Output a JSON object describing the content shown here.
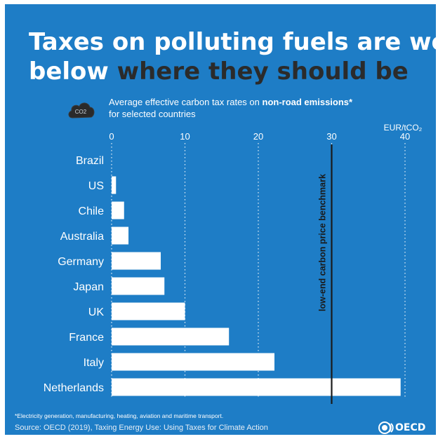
{
  "title": {
    "line1": "Taxes on polluting fuels are well",
    "line2_white": "below ",
    "line2_dark": "where they should be"
  },
  "subtitle": {
    "prefix": "Average effective carbon tax rates on ",
    "bold": "non-road emissions*",
    "line2": "for selected countries"
  },
  "icon": {
    "name": "co2-cloud-icon",
    "text": "CO2"
  },
  "chart_data": {
    "type": "bar",
    "orientation": "horizontal",
    "categories": [
      "Brazil",
      "US",
      "Chile",
      "Australia",
      "Germany",
      "Japan",
      "UK",
      "France",
      "Italy",
      "Netherlands"
    ],
    "values": [
      0,
      0.6,
      1.7,
      2.3,
      6.7,
      7.2,
      10,
      16,
      22.2,
      39.4
    ],
    "unit_label": "EUR/tCO₂",
    "xlim": [
      0,
      40
    ],
    "xticks": [
      0,
      10,
      20,
      30,
      40
    ],
    "grid": "dotted vertical",
    "benchmark": {
      "value": 30,
      "label": "low-end carbon price benchmark"
    },
    "bar_color": "#ffffff",
    "background_color": "#1e7dc6"
  },
  "footnote": "*Electricity generation, manufacturing, heating, aviation and maritime transport.",
  "source": "Source: OECD (2019), Taxing Energy Use: Using Taxes for Climate Action",
  "logo": "OECD"
}
